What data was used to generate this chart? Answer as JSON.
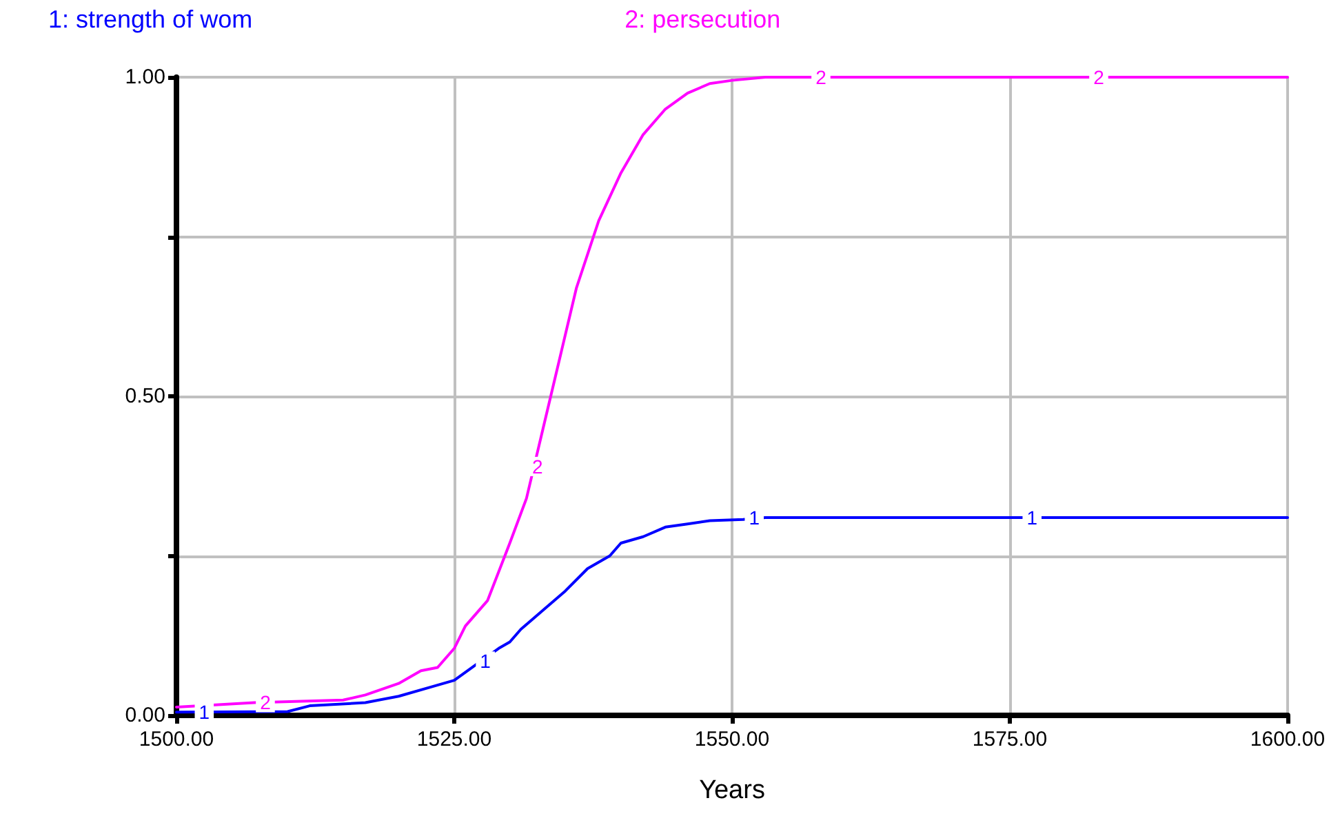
{
  "chart_data": {
    "type": "line",
    "xlabel": "Years",
    "xlim": [
      1500,
      1600
    ],
    "xticks": [
      {
        "value": 1500,
        "label": "1500.00"
      },
      {
        "value": 1525,
        "label": "1525.00"
      },
      {
        "value": 1550,
        "label": "1550.00"
      },
      {
        "value": 1575,
        "label": "1575.00"
      },
      {
        "value": 1600,
        "label": "1600.00"
      }
    ],
    "ylim": [
      0,
      1
    ],
    "yticks": [
      {
        "value": 0,
        "label": "0.00"
      },
      {
        "value": 0.25,
        "label": null
      },
      {
        "value": 0.5,
        "label": "0.50"
      },
      {
        "value": 0.75,
        "label": null
      },
      {
        "value": 1,
        "label": "1.00"
      }
    ],
    "x": [
      1500,
      1510,
      1512,
      1517,
      1520,
      1523,
      1525,
      1527,
      1529,
      1530,
      1531,
      1533,
      1535,
      1537,
      1539,
      1540,
      1542,
      1544,
      1546,
      1548,
      1551,
      1553,
      1600
    ],
    "series": [
      {
        "name": "1: strength of wom",
        "color": "#0000ff",
        "values": [
          0.005,
          0.006,
          0.015,
          0.02,
          0.03,
          0.045,
          0.055,
          0.08,
          0.105,
          0.115,
          0.135,
          0.165,
          0.195,
          0.23,
          0.25,
          0.27,
          0.28,
          0.295,
          0.3,
          0.305,
          0.307,
          0.31,
          0.31
        ]
      },
      {
        "name": "2: persecution",
        "color": "#ff00ff",
        "x": [
          1500,
          1507,
          1515,
          1517,
          1520,
          1522,
          1523.5,
          1525,
          1526,
          1528,
          1530,
          1531.5,
          1533,
          1534.5,
          1536,
          1538,
          1540,
          1542,
          1544,
          1546,
          1548,
          1550,
          1553,
          1600
        ],
        "values": [
          0.013,
          0.02,
          0.024,
          0.032,
          0.05,
          0.07,
          0.075,
          0.105,
          0.14,
          0.18,
          0.27,
          0.34,
          0.45,
          0.56,
          0.67,
          0.775,
          0.85,
          0.91,
          0.95,
          0.975,
          0.99,
          0.995,
          1,
          1
        ]
      }
    ],
    "annotations": [
      {
        "text": "1",
        "x": 1502.5,
        "y": 0.005
      },
      {
        "text": "1",
        "x": 1527.8,
        "y": 0.085
      },
      {
        "text": "1",
        "x": 1552,
        "y": 0.31
      },
      {
        "text": "1",
        "x": 1577,
        "y": 0.31
      },
      {
        "text": "2",
        "x": 1508,
        "y": 0.02
      },
      {
        "text": "2",
        "x": 1532.5,
        "y": 0.39
      },
      {
        "text": "2",
        "x": 1558,
        "y": 1
      },
      {
        "text": "2",
        "x": 1583,
        "y": 1
      }
    ],
    "grid": true,
    "legend": "top",
    "marker": "none",
    "line_style": "solid"
  }
}
